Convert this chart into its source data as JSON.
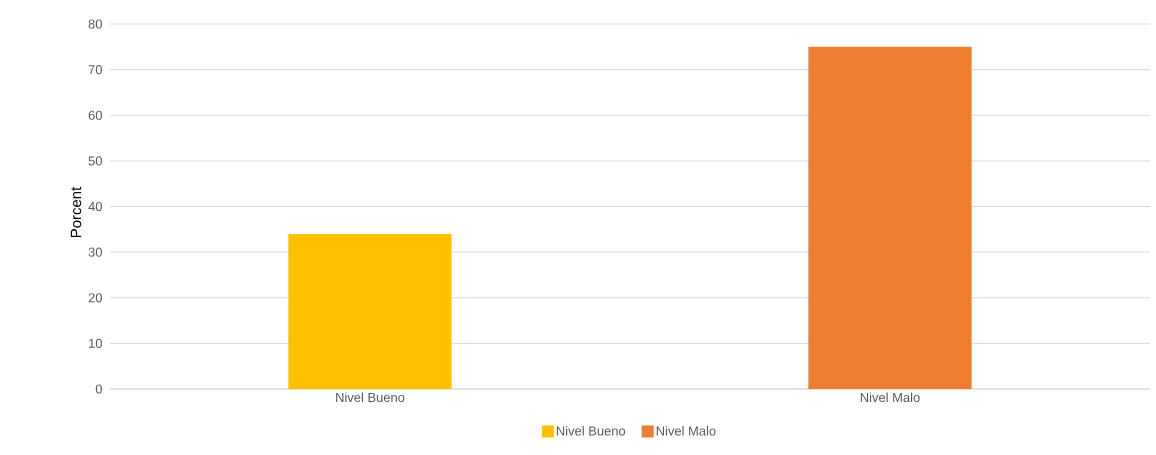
{
  "chart_data": {
    "type": "bar",
    "categories": [
      "Nivel Bueno",
      "Nivel Malo"
    ],
    "series": [
      {
        "name": "Nivel Bueno",
        "color": "#ffc000",
        "values": [
          34,
          null
        ]
      },
      {
        "name": "Nivel Malo",
        "color": "#ed7d31",
        "values": [
          null,
          75
        ]
      }
    ],
    "ylabel": "Porcent",
    "ylim": [
      0,
      80
    ],
    "yticks": [
      0,
      10,
      20,
      30,
      40,
      50,
      60,
      70,
      80
    ],
    "grid": "y",
    "legend": "bottom"
  }
}
